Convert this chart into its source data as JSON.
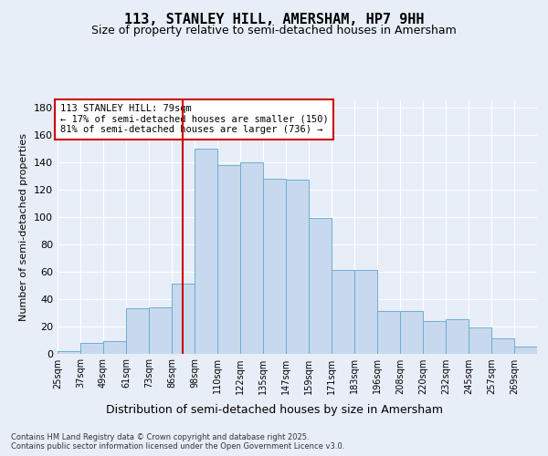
{
  "title": "113, STANLEY HILL, AMERSHAM, HP7 9HH",
  "subtitle": "Size of property relative to semi-detached houses in Amersham",
  "xlabel": "Distribution of semi-detached houses by size in Amersham",
  "ylabel": "Number of semi-detached properties",
  "tick_labels": [
    "25sqm",
    "37sqm",
    "49sqm",
    "61sqm",
    "73sqm",
    "86sqm",
    "98sqm",
    "110sqm",
    "122sqm",
    "135sqm",
    "147sqm",
    "159sqm",
    "171sqm",
    "183sqm",
    "196sqm",
    "208sqm",
    "220sqm",
    "232sqm",
    "245sqm",
    "257sqm",
    "269sqm"
  ],
  "heights": [
    2,
    8,
    9,
    33,
    34,
    51,
    150,
    138,
    140,
    128,
    127,
    99,
    61,
    61,
    31,
    31,
    24,
    25,
    19,
    11,
    5
  ],
  "bar_color": "#c8d9ee",
  "bar_edge_color": "#6aaed6",
  "vline_index": 6,
  "vline_color": "#cc0000",
  "annotation_text": "113 STANLEY HILL: 79sqm\n← 17% of semi-detached houses are smaller (150)\n81% of semi-detached houses are larger (736) →",
  "bg_color": "#e8eef8",
  "grid_color": "#ffffff",
  "ylim": [
    0,
    185
  ],
  "yticks": [
    0,
    20,
    40,
    60,
    80,
    100,
    120,
    140,
    160,
    180
  ],
  "footnote": "Contains HM Land Registry data © Crown copyright and database right 2025.\nContains public sector information licensed under the Open Government Licence v3.0.",
  "title_fontsize": 11,
  "subtitle_fontsize": 9,
  "tick_label_fontsize": 7,
  "ylabel_fontsize": 8,
  "xlabel_fontsize": 9,
  "annot_fontsize": 7.5
}
